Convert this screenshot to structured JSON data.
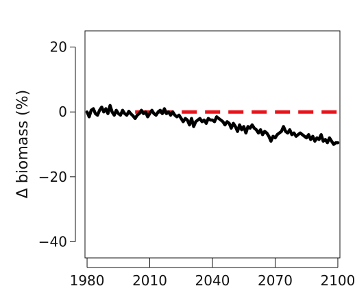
{
  "chart_data": {
    "type": "line",
    "title": "",
    "xlabel": "",
    "ylabel": "Δ biomass (%)",
    "xlim": [
      1979,
      2101
    ],
    "ylim": [
      -45,
      25
    ],
    "x_ticks": [
      1980,
      2010,
      2040,
      2070,
      2100
    ],
    "y_ticks": [
      20,
      0,
      -20,
      -40
    ],
    "x_tick_labels": [
      "1980",
      "2010",
      "2040",
      "2070",
      "2100"
    ],
    "y_tick_labels": [
      "20",
      "0",
      "−20",
      "−40"
    ],
    "grid": false,
    "legend": "none",
    "series": [
      {
        "style": "solid",
        "color": "#000000",
        "x": [
          1980,
          1981,
          1982,
          1983,
          1984,
          1985,
          1986,
          1987,
          1988,
          1989,
          1990,
          1991,
          1992,
          1993,
          1994,
          1995,
          1996,
          1997,
          1998,
          1999,
          2000,
          2001,
          2002,
          2003,
          2004,
          2005,
          2006,
          2007,
          2008,
          2009,
          2010,
          2011,
          2012,
          2013,
          2014,
          2015,
          2016,
          2017,
          2018,
          2019,
          2020,
          2021,
          2022,
          2023,
          2024,
          2025,
          2026,
          2027,
          2028,
          2029,
          2030,
          2031,
          2032,
          2033,
          2034,
          2035,
          2036,
          2037,
          2038,
          2039,
          2040,
          2041,
          2042,
          2043,
          2044,
          2045,
          2046,
          2047,
          2048,
          2049,
          2050,
          2051,
          2052,
          2053,
          2054,
          2055,
          2056,
          2057,
          2058,
          2059,
          2060,
          2061,
          2062,
          2063,
          2064,
          2065,
          2066,
          2067,
          2068,
          2069,
          2070,
          2071,
          2072,
          2073,
          2074,
          2075,
          2076,
          2077,
          2078,
          2079,
          2080,
          2081,
          2082,
          2083,
          2084,
          2085,
          2086,
          2087,
          2088,
          2089,
          2090,
          2091,
          2092,
          2093,
          2094,
          2095,
          2096,
          2097,
          2098,
          2099,
          2100
        ],
        "y": [
          0,
          -1.5,
          0.5,
          1,
          -0.5,
          -1,
          0.5,
          1.5,
          0,
          1,
          -0.5,
          2,
          0,
          -1,
          0.5,
          -0.5,
          -1,
          0.5,
          -0.5,
          -1,
          0.2,
          -0.6,
          -1.2,
          -2,
          -1,
          -0.5,
          0.5,
          -0.5,
          0,
          -1.5,
          -0.5,
          0.5,
          -0.5,
          -1,
          0,
          0.5,
          -0.5,
          1,
          -0.5,
          0,
          -1,
          0,
          -1,
          -1.5,
          -1,
          -2,
          -3,
          -2,
          -2.5,
          -4,
          -2,
          -4.5,
          -3,
          -2.5,
          -2,
          -3,
          -2.5,
          -3.5,
          -2,
          -2.5,
          -2.5,
          -3,
          -1.5,
          -2,
          -2.5,
          -3,
          -4,
          -3,
          -3.5,
          -5,
          -3.5,
          -4.5,
          -6,
          -4,
          -5.5,
          -4.5,
          -6.5,
          -4.5,
          -5,
          -4,
          -5,
          -5.5,
          -6.5,
          -5.5,
          -7,
          -6,
          -6.5,
          -7.5,
          -9,
          -7.5,
          -8,
          -7,
          -6.5,
          -6,
          -4.5,
          -6,
          -6.5,
          -5.5,
          -7,
          -6.5,
          -7.5,
          -7,
          -6.5,
          -7,
          -7.5,
          -8,
          -7,
          -8.5,
          -7.5,
          -9,
          -8,
          -8.5,
          -7,
          -9,
          -8.5,
          -9.5,
          -8,
          -9,
          -10,
          -9.5,
          -9.5
        ]
      },
      {
        "style": "dashed",
        "color": "#e8141a",
        "x": [
          2003,
          2100
        ],
        "y": [
          0,
          0
        ]
      }
    ]
  }
}
